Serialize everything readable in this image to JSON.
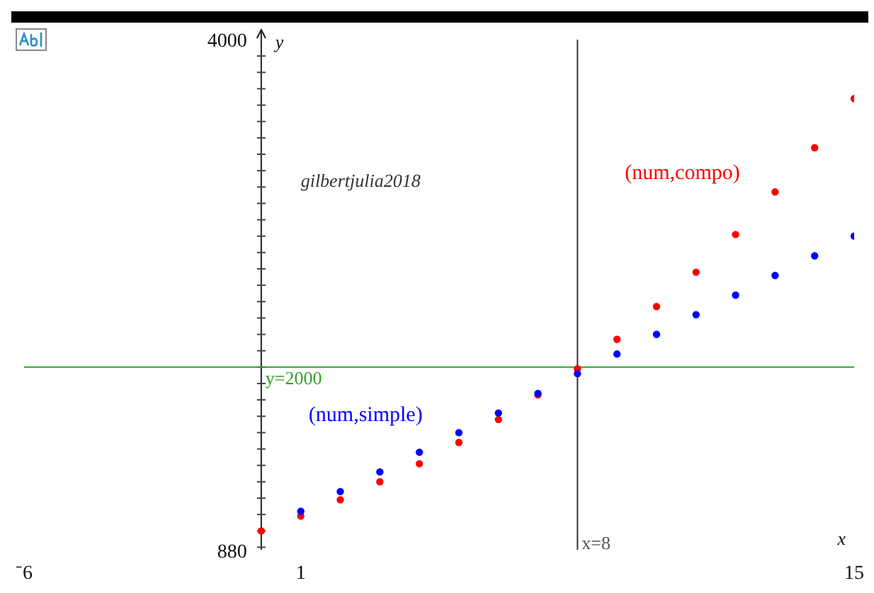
{
  "chart_data": {
    "type": "scatter",
    "xlabel": "x",
    "ylabel": "y",
    "x": [
      0,
      1,
      2,
      3,
      4,
      5,
      6,
      7,
      8,
      9,
      10,
      11,
      12,
      13,
      14,
      15
    ],
    "series": [
      {
        "name": "(num,simple)",
        "color": "#0000ff",
        "values": [
          null,
          1120,
          1240,
          1360,
          1480,
          1600,
          1720,
          1840,
          1960,
          2080,
          2200,
          2320,
          2440,
          2560,
          2680,
          2800
        ]
      },
      {
        "name": "(num,compo)",
        "color": "#ff0000",
        "values": [
          1000,
          1090,
          1190,
          1300,
          1410,
          1540,
          1680,
          1830,
          1990,
          2170,
          2370,
          2580,
          2810,
          3070,
          3340,
          3640
        ]
      }
    ],
    "xlim": [
      -6,
      15
    ],
    "xticks": [
      {
        "value": -6,
        "label": "⁻6"
      },
      1,
      15
    ],
    "ylim": [
      880,
      4000
    ],
    "yticks": [
      880,
      4000
    ],
    "ref_lines": [
      {
        "axis": "x",
        "value": 8,
        "label": "x=8",
        "color": "#333333"
      },
      {
        "axis": "y",
        "value": 2000,
        "label": "y=2000",
        "color": "#33a02c"
      }
    ],
    "annotations": [
      "gilbertjulia2018"
    ],
    "marker": "circle",
    "grid": false
  }
}
